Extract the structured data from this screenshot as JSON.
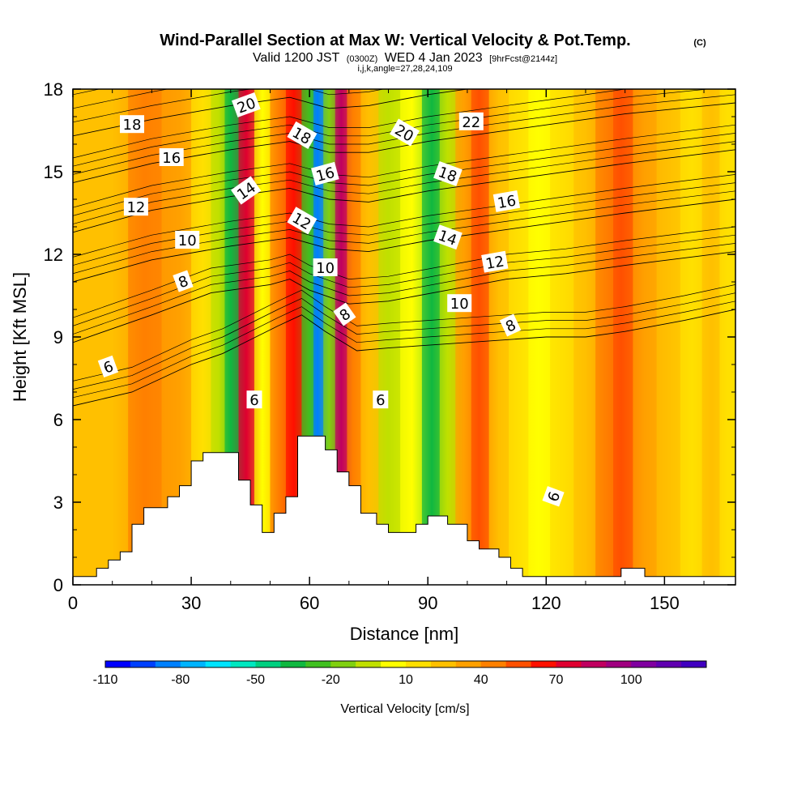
{
  "chart_data": {
    "type": "heatmap",
    "title": "Wind-Parallel Section at Max W: Vertical Velocity & Pot.Temp.",
    "title_mark": "(C)",
    "subtitle": {
      "valid_prefix": "Valid 1200 JST",
      "valid_utc": "(0300Z)",
      "valid_date": "WED 4 Jan 2023",
      "forecast": "[9hrFcst@2144z]"
    },
    "section_info": "i,j,k,angle=27,28,24,109",
    "xlabel": "Distance [nm]",
    "ylabel": "Height [Kft MSL]",
    "xlim": [
      0,
      168
    ],
    "ylim": [
      0,
      18
    ],
    "xticks": [
      0,
      30,
      60,
      90,
      120,
      150
    ],
    "yticks": [
      0,
      3,
      6,
      9,
      12,
      15,
      18
    ],
    "colorbar": {
      "title": "Vertical Velocity [cm/s]",
      "labels": [
        "-110",
        "-80",
        "-50",
        "-20",
        "10",
        "40",
        "70",
        "100"
      ],
      "colors": [
        "#0000ff",
        "#0040ff",
        "#0080ff",
        "#00b4ff",
        "#00e4ff",
        "#00e8c0",
        "#00d080",
        "#10b840",
        "#40c020",
        "#80d010",
        "#c0e000",
        "#ffff00",
        "#ffe000",
        "#ffc000",
        "#ffa000",
        "#ff8000",
        "#ff5000",
        "#ff1000",
        "#e00030",
        "#c00060",
        "#a00080",
        "#8000a0",
        "#6000b0",
        "#4000c0"
      ]
    },
    "columns": [
      {
        "x": 3,
        "value": 10
      },
      {
        "x": 10,
        "value": 15
      },
      {
        "x": 18,
        "value": 30
      },
      {
        "x": 27,
        "value": 20
      },
      {
        "x": 33,
        "value": 0
      },
      {
        "x": 37,
        "value": -20
      },
      {
        "x": 40,
        "value": -45
      },
      {
        "x": 44,
        "value": 65
      },
      {
        "x": 48,
        "value": -10
      },
      {
        "x": 52,
        "value": 30
      },
      {
        "x": 56,
        "value": 55
      },
      {
        "x": 60,
        "value": -40
      },
      {
        "x": 62,
        "value": -95
      },
      {
        "x": 65,
        "value": -30
      },
      {
        "x": 68,
        "value": 70
      },
      {
        "x": 71,
        "value": 30
      },
      {
        "x": 75,
        "value": 10
      },
      {
        "x": 80,
        "value": -20
      },
      {
        "x": 86,
        "value": -10
      },
      {
        "x": 91,
        "value": -45
      },
      {
        "x": 95,
        "value": -15
      },
      {
        "x": 99,
        "value": 20
      },
      {
        "x": 103,
        "value": 40
      },
      {
        "x": 108,
        "value": 15
      },
      {
        "x": 113,
        "value": 0
      },
      {
        "x": 118,
        "value": -10
      },
      {
        "x": 124,
        "value": 5
      },
      {
        "x": 130,
        "value": 15
      },
      {
        "x": 135,
        "value": 30
      },
      {
        "x": 139,
        "value": 45
      },
      {
        "x": 145,
        "value": 20
      },
      {
        "x": 151,
        "value": 10
      },
      {
        "x": 157,
        "value": 5
      },
      {
        "x": 162,
        "value": 15
      },
      {
        "x": 166,
        "value": 5
      }
    ],
    "terrain": [
      [
        0,
        0.3
      ],
      [
        6,
        0.3
      ],
      [
        6,
        0.6
      ],
      [
        9,
        0.6
      ],
      [
        9,
        0.9
      ],
      [
        12,
        0.9
      ],
      [
        12,
        1.2
      ],
      [
        15,
        1.2
      ],
      [
        15,
        2.2
      ],
      [
        18,
        2.2
      ],
      [
        18,
        2.8
      ],
      [
        24,
        2.8
      ],
      [
        24,
        3.2
      ],
      [
        27,
        3.2
      ],
      [
        27,
        3.6
      ],
      [
        30,
        3.6
      ],
      [
        30,
        4.5
      ],
      [
        33,
        4.5
      ],
      [
        33,
        4.8
      ],
      [
        42,
        4.8
      ],
      [
        42,
        3.8
      ],
      [
        45,
        3.8
      ],
      [
        45,
        2.9
      ],
      [
        48,
        2.9
      ],
      [
        48,
        1.9
      ],
      [
        51,
        1.9
      ],
      [
        51,
        2.6
      ],
      [
        54,
        2.6
      ],
      [
        54,
        3.2
      ],
      [
        57,
        3.2
      ],
      [
        57,
        5.4
      ],
      [
        64,
        5.4
      ],
      [
        64,
        4.9
      ],
      [
        67,
        4.9
      ],
      [
        67,
        4.1
      ],
      [
        70,
        4.1
      ],
      [
        70,
        3.6
      ],
      [
        73,
        3.6
      ],
      [
        73,
        2.6
      ],
      [
        77,
        2.6
      ],
      [
        77,
        2.2
      ],
      [
        80,
        2.2
      ],
      [
        80,
        1.9
      ],
      [
        87,
        1.9
      ],
      [
        87,
        2.2
      ],
      [
        90,
        2.2
      ],
      [
        90,
        2.5
      ],
      [
        95,
        2.5
      ],
      [
        95,
        2.2
      ],
      [
        100,
        2.2
      ],
      [
        100,
        1.6
      ],
      [
        103,
        1.6
      ],
      [
        103,
        1.3
      ],
      [
        108,
        1.3
      ],
      [
        108,
        1.0
      ],
      [
        111,
        1.0
      ],
      [
        111,
        0.6
      ],
      [
        114,
        0.6
      ],
      [
        114,
        0.3
      ],
      [
        139,
        0.3
      ],
      [
        139,
        0.6
      ],
      [
        145,
        0.6
      ],
      [
        145,
        0.3
      ],
      [
        168,
        0.3
      ]
    ],
    "isentropes": [
      {
        "level": 6,
        "pts": [
          [
            0,
            6.5
          ],
          [
            15,
            7.0
          ],
          [
            30,
            8.0
          ],
          [
            38,
            8.4
          ],
          [
            45,
            8.9
          ],
          [
            52,
            9.4
          ],
          [
            58,
            9.8
          ],
          [
            64,
            9.2
          ],
          [
            72,
            8.5
          ],
          [
            80,
            8.6
          ],
          [
            90,
            8.7
          ],
          [
            100,
            8.8
          ],
          [
            110,
            8.9
          ],
          [
            120,
            9.0
          ],
          [
            130,
            9.0
          ],
          [
            140,
            9.2
          ],
          [
            155,
            9.6
          ],
          [
            168,
            10.0
          ]
        ]
      },
      {
        "level": 8,
        "pts": [
          [
            0,
            8.8
          ],
          [
            20,
            9.8
          ],
          [
            35,
            10.6
          ],
          [
            50,
            10.9
          ],
          [
            55,
            11.1
          ],
          [
            60,
            10.7
          ],
          [
            70,
            10.2
          ],
          [
            80,
            10.3
          ],
          [
            95,
            10.7
          ],
          [
            110,
            11.1
          ],
          [
            125,
            11.3
          ],
          [
            140,
            11.6
          ],
          [
            168,
            12.1
          ]
        ]
      },
      {
        "level": 10,
        "pts": [
          [
            0,
            11.0
          ],
          [
            20,
            11.8
          ],
          [
            40,
            12.3
          ],
          [
            55,
            12.6
          ],
          [
            65,
            12.2
          ],
          [
            75,
            12.1
          ],
          [
            90,
            12.5
          ],
          [
            105,
            12.8
          ],
          [
            120,
            13.1
          ],
          [
            140,
            13.5
          ],
          [
            168,
            14.0
          ]
        ]
      },
      {
        "level": 12,
        "pts": [
          [
            0,
            12.8
          ],
          [
            20,
            13.6
          ],
          [
            40,
            14.1
          ],
          [
            55,
            14.4
          ],
          [
            65,
            14.0
          ],
          [
            75,
            13.9
          ],
          [
            90,
            14.3
          ],
          [
            105,
            14.6
          ],
          [
            120,
            14.9
          ],
          [
            140,
            15.3
          ],
          [
            168,
            15.8
          ]
        ]
      },
      {
        "level": 14,
        "pts": [
          [
            0,
            14.6
          ],
          [
            20,
            15.3
          ],
          [
            40,
            15.8
          ],
          [
            55,
            16.1
          ],
          [
            65,
            15.7
          ],
          [
            75,
            15.7
          ],
          [
            90,
            16.1
          ],
          [
            105,
            16.4
          ],
          [
            120,
            16.7
          ],
          [
            140,
            17.1
          ],
          [
            168,
            17.5
          ]
        ]
      },
      {
        "level": 16,
        "pts": [
          [
            0,
            16.3
          ],
          [
            20,
            16.9
          ],
          [
            40,
            17.4
          ],
          [
            55,
            17.7
          ],
          [
            65,
            17.3
          ],
          [
            75,
            17.4
          ],
          [
            90,
            17.8
          ],
          [
            105,
            18.1
          ],
          [
            168,
            18.6
          ]
        ]
      }
    ],
    "contour_labels": [
      {
        "text": "18",
        "x": 15,
        "y": 16.7,
        "angle": 0
      },
      {
        "text": "16",
        "x": 25,
        "y": 15.5,
        "angle": 0
      },
      {
        "text": "12",
        "x": 16,
        "y": 13.7,
        "angle": 0
      },
      {
        "text": "10",
        "x": 29,
        "y": 12.5,
        "angle": 0
      },
      {
        "text": "8",
        "x": 28,
        "y": 11.0,
        "angle": -20
      },
      {
        "text": "6",
        "x": 9,
        "y": 7.9,
        "angle": -20
      },
      {
        "text": "20",
        "x": 44,
        "y": 17.4,
        "angle": -20
      },
      {
        "text": "18",
        "x": 58,
        "y": 16.3,
        "angle": 30
      },
      {
        "text": "14",
        "x": 44,
        "y": 14.3,
        "angle": -35
      },
      {
        "text": "12",
        "x": 58,
        "y": 13.2,
        "angle": 30
      },
      {
        "text": "16",
        "x": 64,
        "y": 14.9,
        "angle": -15
      },
      {
        "text": "10",
        "x": 64,
        "y": 11.5,
        "angle": 0
      },
      {
        "text": "8",
        "x": 69,
        "y": 9.8,
        "angle": -35
      },
      {
        "text": "6",
        "x": 46,
        "y": 6.7,
        "angle": 0
      },
      {
        "text": "6",
        "x": 78,
        "y": 6.7,
        "angle": 0
      },
      {
        "text": "20",
        "x": 84,
        "y": 16.4,
        "angle": 30
      },
      {
        "text": "22",
        "x": 101,
        "y": 16.8,
        "angle": 0
      },
      {
        "text": "18",
        "x": 95,
        "y": 14.9,
        "angle": 20
      },
      {
        "text": "16",
        "x": 110,
        "y": 13.9,
        "angle": -10
      },
      {
        "text": "14",
        "x": 95,
        "y": 12.6,
        "angle": 20
      },
      {
        "text": "12",
        "x": 107,
        "y": 11.7,
        "angle": -10
      },
      {
        "text": "10",
        "x": 98,
        "y": 10.2,
        "angle": 0
      },
      {
        "text": "8",
        "x": 111,
        "y": 9.4,
        "angle": -25
      },
      {
        "text": "6",
        "x": 122,
        "y": 3.2,
        "angle": -70
      }
    ]
  }
}
